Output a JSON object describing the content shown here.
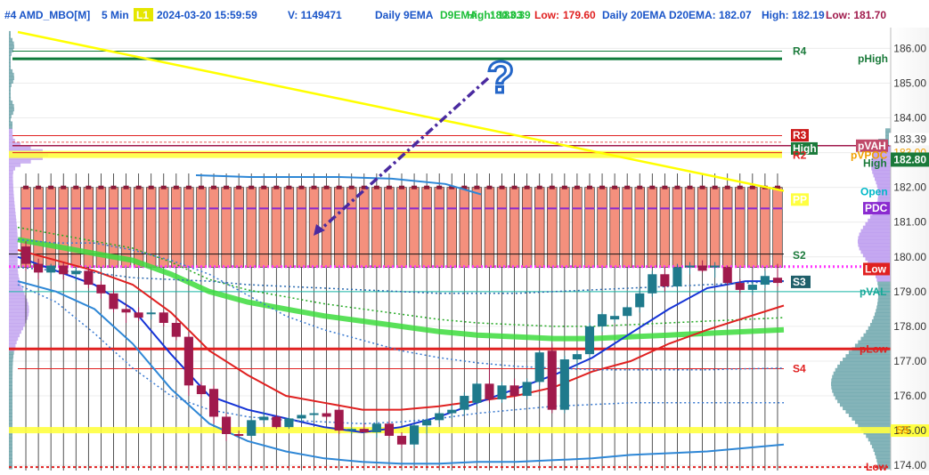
{
  "header": {
    "chart_id": "#4 AMD_MBO[M]",
    "interval": "5 Min",
    "badge": "L1",
    "datetime": "2024-03-20 15:59:59",
    "volume": "V: 1149471",
    "daily9_label": "Daily 9EMA",
    "d9ema_label": "D9EMA:",
    "d9ema_value": "180.03",
    "high9_label": "High:",
    "high9_value": "183.39",
    "low9_label": "Low:",
    "low9_value": "179.60",
    "daily20_label": "Daily 20EMA",
    "d20ema_label": "D20EMA: 182.07",
    "high20_label": "High: 182.19",
    "low20_label": "Low: 181.70"
  },
  "question_mark": "?",
  "chart_data": {
    "type": "candlestick",
    "interval": "5 Min",
    "ylim": [
      173.85,
      186.6
    ],
    "y_ticks": [
      "186.00",
      "185.00",
      "184.00",
      "183.39",
      "183.00",
      "182.80",
      "182.00",
      "181.00",
      "180.00",
      "179.00",
      "178.00",
      "177.00",
      "176.00",
      "175.00",
      "174.00"
    ],
    "last_price": 182.8,
    "candles": [
      {
        "o": 180.3,
        "h": 180.45,
        "l": 179.6,
        "c": 179.8
      },
      {
        "o": 179.8,
        "h": 179.95,
        "l": 179.35,
        "c": 179.55
      },
      {
        "o": 179.55,
        "h": 179.8,
        "l": 179.3,
        "c": 179.75
      },
      {
        "o": 179.75,
        "h": 179.85,
        "l": 179.35,
        "c": 179.5
      },
      {
        "o": 179.5,
        "h": 179.7,
        "l": 179.3,
        "c": 179.6
      },
      {
        "o": 179.6,
        "h": 179.7,
        "l": 179.1,
        "c": 179.2
      },
      {
        "o": 179.2,
        "h": 179.3,
        "l": 178.8,
        "c": 178.95
      },
      {
        "o": 178.95,
        "h": 179.05,
        "l": 178.4,
        "c": 178.5
      },
      {
        "o": 178.5,
        "h": 178.65,
        "l": 178.1,
        "c": 178.4
      },
      {
        "o": 178.4,
        "h": 178.55,
        "l": 178.15,
        "c": 178.25
      },
      {
        "o": 178.35,
        "h": 178.5,
        "l": 178.2,
        "c": 178.4
      },
      {
        "o": 178.4,
        "h": 178.45,
        "l": 178.0,
        "c": 178.1
      },
      {
        "o": 178.1,
        "h": 178.25,
        "l": 177.6,
        "c": 177.7
      },
      {
        "o": 177.7,
        "h": 177.8,
        "l": 176.0,
        "c": 176.3
      },
      {
        "o": 176.3,
        "h": 176.4,
        "l": 175.95,
        "c": 176.05
      },
      {
        "o": 176.2,
        "h": 176.3,
        "l": 175.2,
        "c": 175.4
      },
      {
        "o": 175.4,
        "h": 175.5,
        "l": 174.7,
        "c": 174.9
      },
      {
        "o": 174.9,
        "h": 175.0,
        "l": 174.8,
        "c": 174.85
      },
      {
        "o": 174.85,
        "h": 175.35,
        "l": 174.8,
        "c": 175.3
      },
      {
        "o": 175.3,
        "h": 175.55,
        "l": 175.2,
        "c": 175.4
      },
      {
        "o": 175.4,
        "h": 175.45,
        "l": 175.05,
        "c": 175.1
      },
      {
        "o": 175.1,
        "h": 175.4,
        "l": 175.05,
        "c": 175.35
      },
      {
        "o": 175.35,
        "h": 175.5,
        "l": 175.25,
        "c": 175.45
      },
      {
        "o": 175.45,
        "h": 175.65,
        "l": 175.3,
        "c": 175.5
      },
      {
        "o": 175.5,
        "h": 175.75,
        "l": 175.3,
        "c": 175.4
      },
      {
        "o": 175.6,
        "h": 175.7,
        "l": 174.9,
        "c": 175.0
      },
      {
        "o": 175.0,
        "h": 175.1,
        "l": 174.9,
        "c": 175.05
      },
      {
        "o": 175.05,
        "h": 175.2,
        "l": 174.95,
        "c": 174.95
      },
      {
        "o": 174.95,
        "h": 175.3,
        "l": 174.8,
        "c": 175.2
      },
      {
        "o": 175.2,
        "h": 175.3,
        "l": 174.8,
        "c": 174.85
      },
      {
        "o": 174.85,
        "h": 174.95,
        "l": 174.5,
        "c": 174.6
      },
      {
        "o": 174.6,
        "h": 175.2,
        "l": 174.5,
        "c": 175.15
      },
      {
        "o": 175.15,
        "h": 175.35,
        "l": 174.9,
        "c": 175.3
      },
      {
        "o": 175.3,
        "h": 175.55,
        "l": 175.2,
        "c": 175.5
      },
      {
        "o": 175.5,
        "h": 175.75,
        "l": 175.35,
        "c": 175.6
      },
      {
        "o": 175.6,
        "h": 176.1,
        "l": 175.45,
        "c": 176.0
      },
      {
        "o": 175.8,
        "h": 176.4,
        "l": 175.7,
        "c": 176.35
      },
      {
        "o": 176.35,
        "h": 176.9,
        "l": 175.8,
        "c": 175.9
      },
      {
        "o": 175.9,
        "h": 176.4,
        "l": 175.8,
        "c": 176.3
      },
      {
        "o": 176.3,
        "h": 176.5,
        "l": 175.9,
        "c": 176.0
      },
      {
        "o": 176.0,
        "h": 176.5,
        "l": 175.9,
        "c": 176.4
      },
      {
        "o": 176.4,
        "h": 177.3,
        "l": 176.3,
        "c": 177.25
      },
      {
        "o": 177.3,
        "h": 177.5,
        "l": 175.5,
        "c": 175.6
      },
      {
        "o": 175.6,
        "h": 177.15,
        "l": 175.5,
        "c": 177.05
      },
      {
        "o": 177.05,
        "h": 177.3,
        "l": 176.8,
        "c": 177.2
      },
      {
        "o": 177.2,
        "h": 178.1,
        "l": 177.1,
        "c": 178.0
      },
      {
        "o": 178.0,
        "h": 178.4,
        "l": 177.85,
        "c": 178.35
      },
      {
        "o": 178.2,
        "h": 178.45,
        "l": 178.1,
        "c": 178.3
      },
      {
        "o": 178.3,
        "h": 178.6,
        "l": 178.2,
        "c": 178.55
      },
      {
        "o": 178.55,
        "h": 179.1,
        "l": 178.4,
        "c": 178.95
      },
      {
        "o": 178.95,
        "h": 179.6,
        "l": 178.85,
        "c": 179.5
      },
      {
        "o": 179.5,
        "h": 179.7,
        "l": 179.0,
        "c": 179.15
      },
      {
        "o": 179.15,
        "h": 179.8,
        "l": 179.05,
        "c": 179.7
      },
      {
        "o": 179.7,
        "h": 179.85,
        "l": 179.5,
        "c": 179.75
      },
      {
        "o": 179.75,
        "h": 179.9,
        "l": 179.55,
        "c": 179.6
      },
      {
        "o": 179.7,
        "h": 179.85,
        "l": 179.4,
        "c": 179.75
      },
      {
        "o": 179.7,
        "h": 179.75,
        "l": 179.2,
        "c": 179.25
      },
      {
        "o": 179.25,
        "h": 179.35,
        "l": 178.95,
        "c": 179.05
      },
      {
        "o": 179.05,
        "h": 179.3,
        "l": 178.9,
        "c": 179.2
      },
      {
        "o": 179.2,
        "h": 179.6,
        "l": 179.1,
        "c": 179.45
      },
      {
        "o": 179.4,
        "h": 179.8,
        "l": 179.15,
        "c": 179.25
      }
    ],
    "levels": {
      "R4": 185.92,
      "pHigh": 185.7,
      "R3": 183.49,
      "High_top": 183.39,
      "pVAH": 183.2,
      "R2": 183.0,
      "pVPOC": 182.95,
      "High_right": 182.8,
      "Open": 181.9,
      "PP": 181.7,
      "PDC": 181.4,
      "S2": 180.0,
      "Low": 179.72,
      "S3": 179.3,
      "pVAL": 179.0,
      "pLow": 177.35,
      "S4": 176.8,
      "S5": 175.0,
      "Low_bottom": 173.95
    },
    "level_labels": {
      "R4": "R4",
      "pHigh": "pHigh",
      "R3": "R3",
      "High_top": "High",
      "pVAH": "pVAH",
      "R2": "R2",
      "pVPOC": "pVPOC",
      "High_right": "High",
      "Open": "Open",
      "PP": "PP",
      "PDC": "PDC",
      "S2": "S2",
      "Low": "Low",
      "S3": "S3",
      "pVAL": "pVAL",
      "pLow": "pLow",
      "S4": "S4",
      "S5": "S5",
      "Low_bottom": "Low"
    },
    "colors": {
      "bull_body": "#1f7a8c",
      "bear_body": "#a01a4c",
      "doji": "#6a2a8a",
      "ema_red": "#e02020",
      "ema_blue": "#1433d6",
      "ema_green": "#3ddc3d",
      "yellow": "#ffff00",
      "profile": "#5e9aa0",
      "profile_purple": "#bb99ee"
    }
  }
}
